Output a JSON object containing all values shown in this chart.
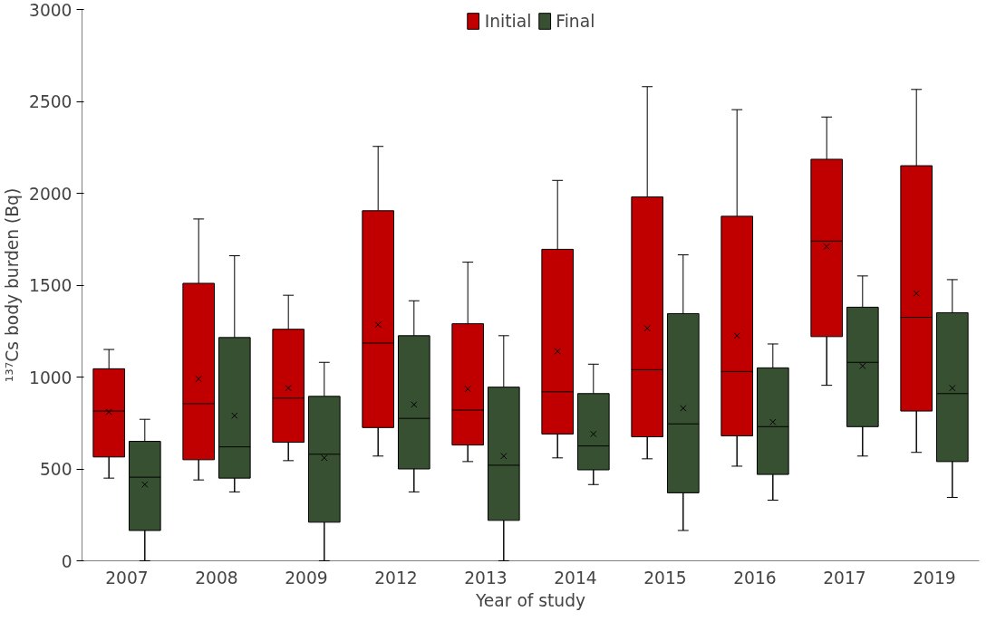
{
  "chart_data": {
    "type": "box",
    "xlabel": "Year of study",
    "ylabel": "¹³⁷Cs body burden (Bq)",
    "categories": [
      "2007",
      "2008",
      "2009",
      "2012",
      "2013",
      "2014",
      "2015",
      "2016",
      "2017",
      "2019"
    ],
    "ylim": [
      0,
      3000
    ],
    "yticks": [
      0,
      500,
      1000,
      1500,
      2000,
      2500,
      3000
    ],
    "legend": "top",
    "grid": false,
    "series": [
      {
        "name": "Initial",
        "color": "#c00000",
        "boxes": [
          {
            "low": 450,
            "q1": 565,
            "median": 815,
            "q3": 1045,
            "high": 1150,
            "mean": 810
          },
          {
            "low": 440,
            "q1": 550,
            "median": 855,
            "q3": 1510,
            "high": 1860,
            "mean": 990
          },
          {
            "low": 545,
            "q1": 645,
            "median": 885,
            "q3": 1260,
            "high": 1445,
            "mean": 940
          },
          {
            "low": 570,
            "q1": 725,
            "median": 1185,
            "q3": 1905,
            "high": 2255,
            "mean": 1285
          },
          {
            "low": 540,
            "q1": 630,
            "median": 820,
            "q3": 1290,
            "high": 1625,
            "mean": 935
          },
          {
            "low": 560,
            "q1": 690,
            "median": 920,
            "q3": 1695,
            "high": 2070,
            "mean": 1140
          },
          {
            "low": 555,
            "q1": 675,
            "median": 1040,
            "q3": 1980,
            "high": 2580,
            "mean": 1265
          },
          {
            "low": 515,
            "q1": 680,
            "median": 1030,
            "q3": 1875,
            "high": 2455,
            "mean": 1225
          },
          {
            "low": 955,
            "q1": 1220,
            "median": 1740,
            "q3": 2185,
            "high": 2415,
            "mean": 1710
          },
          {
            "low": 590,
            "q1": 815,
            "median": 1325,
            "q3": 2150,
            "high": 2565,
            "mean": 1455
          }
        ]
      },
      {
        "name": "Final",
        "color": "#375032",
        "boxes": [
          {
            "low": 0,
            "q1": 165,
            "median": 455,
            "q3": 650,
            "high": 770,
            "mean": 415
          },
          {
            "low": 375,
            "q1": 450,
            "median": 620,
            "q3": 1215,
            "high": 1660,
            "mean": 790
          },
          {
            "low": 0,
            "q1": 210,
            "median": 580,
            "q3": 895,
            "high": 1080,
            "mean": 560
          },
          {
            "low": 375,
            "q1": 500,
            "median": 775,
            "q3": 1225,
            "high": 1415,
            "mean": 850
          },
          {
            "low": 0,
            "q1": 220,
            "median": 520,
            "q3": 945,
            "high": 1225,
            "mean": 570
          },
          {
            "low": 415,
            "q1": 495,
            "median": 625,
            "q3": 910,
            "high": 1070,
            "mean": 690
          },
          {
            "low": 165,
            "q1": 370,
            "median": 745,
            "q3": 1345,
            "high": 1665,
            "mean": 830
          },
          {
            "low": 330,
            "q1": 470,
            "median": 730,
            "q3": 1050,
            "high": 1180,
            "mean": 755
          },
          {
            "low": 570,
            "q1": 730,
            "median": 1080,
            "q3": 1380,
            "high": 1550,
            "mean": 1060
          },
          {
            "low": 345,
            "q1": 540,
            "median": 910,
            "q3": 1350,
            "high": 1530,
            "mean": 940
          }
        ]
      }
    ]
  }
}
